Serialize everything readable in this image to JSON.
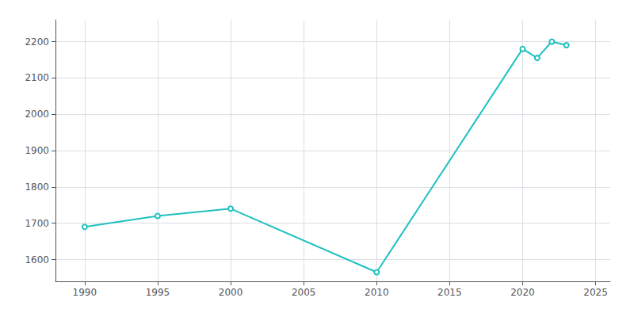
{
  "chart_data": {
    "type": "line",
    "x": [
      1990,
      1995,
      2000,
      2010,
      2020,
      2021,
      2022,
      2023
    ],
    "values": [
      1690,
      1720,
      1740,
      1565,
      2180,
      2155,
      2200,
      2190
    ],
    "color": "#20c0c0",
    "xlim": [
      1988,
      2026
    ],
    "ylim": [
      1540,
      2260
    ],
    "xticks": [
      1990,
      1995,
      2000,
      2005,
      2010,
      2015,
      2020,
      2025
    ],
    "yticks": [
      1600,
      1700,
      1800,
      1900,
      2000,
      2100,
      2200
    ],
    "grid": true
  }
}
